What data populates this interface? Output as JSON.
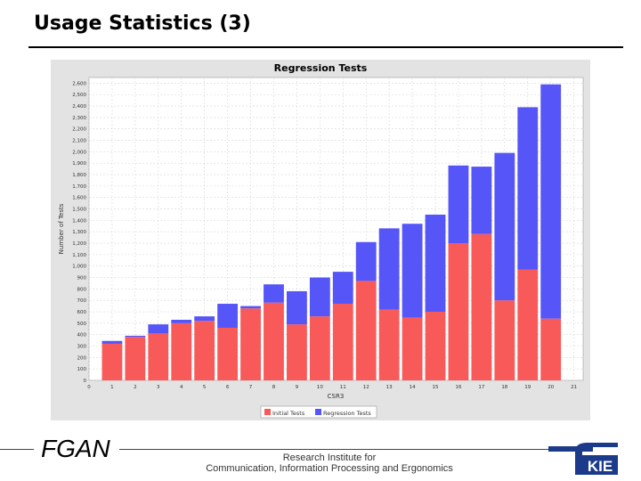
{
  "slide": {
    "title": "Usage Statistics (3)"
  },
  "footer": {
    "org": "FGAN",
    "institute_line1": "Research Institute for",
    "institute_line2": "Communication, Information Processing and Ergonomics",
    "logo_text": "KIE"
  },
  "colors": {
    "initial": "#f85a5a",
    "regression": "#5555f8",
    "plot_bg": "#ffffff",
    "frame_bg": "#e3e3e3"
  },
  "chart_data": {
    "type": "bar",
    "stacked": true,
    "title": "Regression Tests",
    "xlabel": "CSR3",
    "ylabel": "Number of Tests",
    "categories": [
      "1",
      "2",
      "3",
      "4",
      "5",
      "6",
      "7",
      "8",
      "9",
      "10",
      "11",
      "12",
      "13",
      "14",
      "15",
      "16",
      "17",
      "18",
      "19",
      "20"
    ],
    "x_ticks": [
      "0",
      "1",
      "2",
      "3",
      "4",
      "5",
      "6",
      "7",
      "8",
      "9",
      "10",
      "11",
      "12",
      "13",
      "14",
      "15",
      "16",
      "17",
      "18",
      "19",
      "20",
      "21"
    ],
    "y_ticks": [
      "0",
      "100",
      "200",
      "300",
      "400",
      "500",
      "600",
      "700",
      "800",
      "900",
      "1,000",
      "1,100",
      "1,200",
      "1,300",
      "1,400",
      "1,500",
      "1,600",
      "1,700",
      "1,800",
      "1,900",
      "2,000",
      "2,100",
      "2,200",
      "2,300",
      "2,400",
      "2,500",
      "2,600"
    ],
    "ylim": [
      0,
      2650
    ],
    "grid": true,
    "legend_position": "bottom",
    "series": [
      {
        "name": "Initial Tests",
        "values": [
          320,
          380,
          410,
          500,
          520,
          460,
          630,
          680,
          490,
          560,
          670,
          870,
          620,
          550,
          600,
          1200,
          1280,
          700,
          970,
          540
        ]
      },
      {
        "name": "Regression Tests",
        "values": [
          25,
          10,
          80,
          30,
          40,
          210,
          20,
          160,
          290,
          340,
          280,
          340,
          710,
          820,
          850,
          680,
          590,
          1290,
          1420,
          2050
        ]
      }
    ]
  }
}
